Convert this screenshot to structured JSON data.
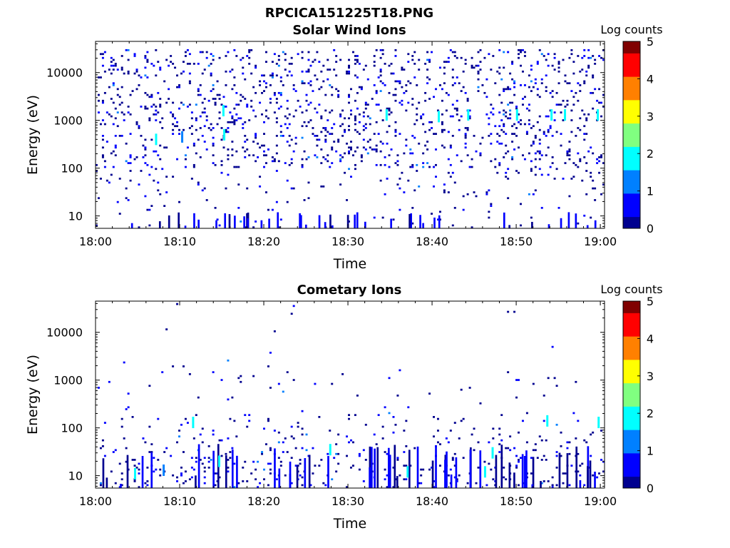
{
  "figure_title": "RPCICA151225T18.PNG",
  "colormap": [
    "#00008f",
    "#0000ff",
    "#0080ff",
    "#00ffff",
    "#80ff80",
    "#ffff00",
    "#ff8000",
    "#ff0000",
    "#800000"
  ],
  "chart_data": [
    {
      "type": "heatmap",
      "title": "Solar Wind Ions",
      "xlabel": "Time",
      "ylabel": "Energy (eV)",
      "x_ticks": [
        "18:00",
        "18:10",
        "18:20",
        "18:30",
        "18:40",
        "18:50",
        "19:00"
      ],
      "x_range_minutes": [
        0,
        60.5
      ],
      "y_ticks": [
        10,
        100,
        1000,
        10000
      ],
      "y_range": [
        5.5,
        45000
      ],
      "y_scale": "log",
      "colorbar": {
        "label": "Log counts",
        "ticks": [
          0,
          1,
          2,
          3,
          4,
          5
        ],
        "range": [
          0,
          5
        ]
      },
      "description": "Sparse counts scattered across all energies 5 eV to 40 keV, mostly log counts 0-1, a few pixels up to ~2",
      "highlights": [
        {
          "minute": 7.2,
          "energy": 400,
          "log_counts": 1.7
        },
        {
          "minute": 10.3,
          "energy": 450,
          "log_counts": 1.5
        },
        {
          "minute": 15.2,
          "energy": 1600,
          "log_counts": 2.0
        },
        {
          "minute": 15.3,
          "energy": 500,
          "log_counts": 1.8
        },
        {
          "minute": 34.6,
          "energy": 1300,
          "log_counts": 1.8
        },
        {
          "minute": 40.8,
          "energy": 1200,
          "log_counts": 1.8
        },
        {
          "minute": 44.3,
          "energy": 1300,
          "log_counts": 2.0
        },
        {
          "minute": 50.1,
          "energy": 1300,
          "log_counts": 2.0
        },
        {
          "minute": 54.2,
          "energy": 1300,
          "log_counts": 1.6
        },
        {
          "minute": 55.8,
          "energy": 1300,
          "log_counts": 1.6
        },
        {
          "minute": 59.7,
          "energy": 1300,
          "log_counts": 2.0
        }
      ]
    },
    {
      "type": "heatmap",
      "title": "Cometary Ions",
      "xlabel": "Time",
      "ylabel": "Energy (eV)",
      "x_ticks": [
        "18:00",
        "18:10",
        "18:20",
        "18:30",
        "18:40",
        "18:50",
        "19:00"
      ],
      "x_range_minutes": [
        0,
        60.5
      ],
      "y_ticks": [
        10,
        100,
        1000,
        10000
      ],
      "y_range": [
        5.5,
        45000
      ],
      "y_scale": "log",
      "colorbar": {
        "label": "Log counts",
        "ticks": [
          0,
          1,
          2,
          3,
          4,
          5
        ],
        "range": [
          0,
          5
        ]
      },
      "description": "Counts concentrated below ~100 eV in vertical bursts, sparse points up to ~10 keV, log counts mostly 0-2",
      "highlights": [
        {
          "minute": 4.7,
          "energy": 11,
          "log_counts": 1.6
        },
        {
          "minute": 8.1,
          "energy": 13,
          "log_counts": 1.5
        },
        {
          "minute": 11.6,
          "energy": 130,
          "log_counts": 1.6
        },
        {
          "minute": 14.7,
          "energy": 20,
          "log_counts": 1.6
        },
        {
          "minute": 27.9,
          "energy": 35,
          "log_counts": 1.8
        },
        {
          "minute": 37.1,
          "energy": 12,
          "log_counts": 2.0
        },
        {
          "minute": 46.3,
          "energy": 12,
          "log_counts": 2.0
        },
        {
          "minute": 47.2,
          "energy": 30,
          "log_counts": 1.6
        },
        {
          "minute": 53.7,
          "energy": 140,
          "log_counts": 1.8
        },
        {
          "minute": 59.8,
          "energy": 130,
          "log_counts": 2.1
        }
      ]
    }
  ]
}
